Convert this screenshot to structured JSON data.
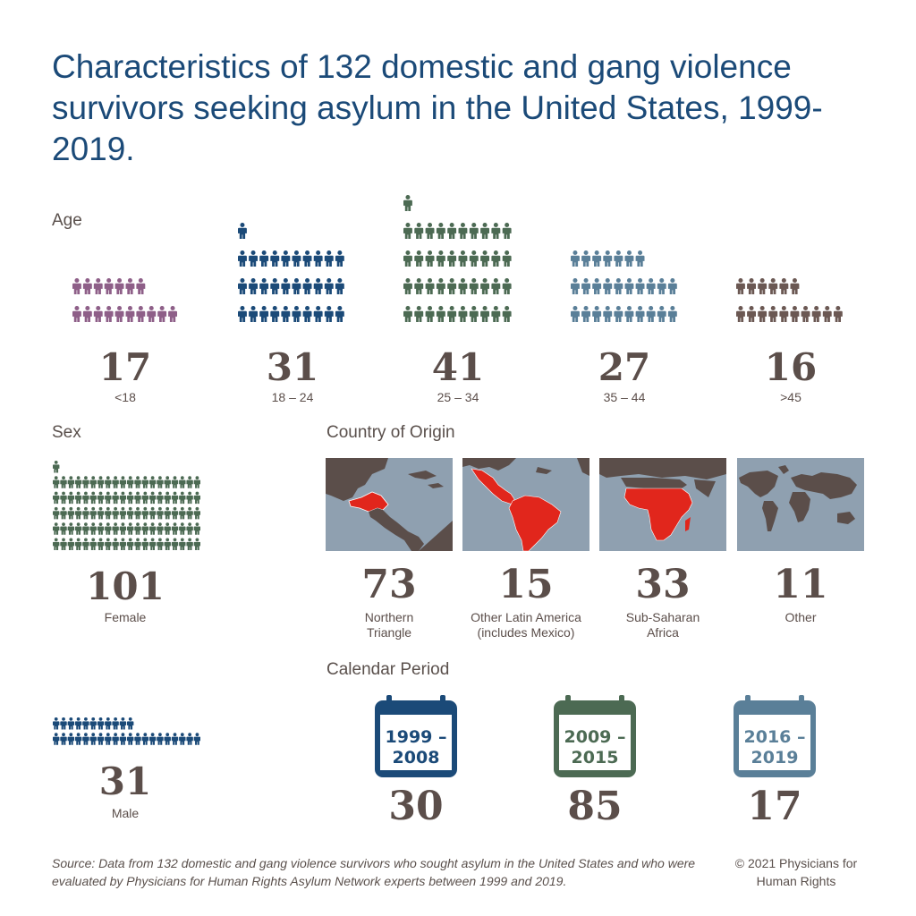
{
  "title": "Characteristics of 132 domestic and gang violence survivors seeking asylum in the United States, 1999-2019.",
  "sections": {
    "age": "Age",
    "sex": "Sex",
    "country": "Country of Origin",
    "period": "Calendar Period"
  },
  "colors": {
    "title": "#1b4a78",
    "text": "#5b4e4a",
    "purple": "#8e5f88",
    "navy": "#1b4a78",
    "green": "#4c6a53",
    "steel": "#5a7f98",
    "brown": "#6b5853",
    "map_sea": "#8fa0b0",
    "map_land": "#5b4e4a",
    "map_highlight": "#e1261c"
  },
  "chart_data": [
    {
      "type": "pictograph",
      "title": "Age",
      "categories": [
        "<18",
        "18 – 24",
        "25 – 34",
        "35 – 44",
        ">45"
      ],
      "values": [
        17,
        31,
        41,
        27,
        16
      ],
      "labels": [
        "17",
        "31",
        "41",
        "27",
        "16"
      ],
      "colors": [
        "#8e5f88",
        "#1b4a78",
        "#4c6a53",
        "#5a7f98",
        "#6b5853"
      ]
    },
    {
      "type": "pictograph",
      "title": "Sex",
      "categories": [
        "Female",
        "Male"
      ],
      "values": [
        101,
        31
      ],
      "labels": [
        "101",
        "31"
      ],
      "colors": [
        "#4c6a53",
        "#1b4a78"
      ]
    },
    {
      "type": "map-icons",
      "title": "Country of Origin",
      "categories": [
        "Northern Triangle",
        "Other Latin America (includes Mexico)",
        "Sub-Saharan Africa",
        "Other"
      ],
      "values": [
        73,
        15,
        33,
        11
      ],
      "labels": [
        "73",
        "15",
        "33",
        "11"
      ]
    },
    {
      "type": "calendar-icons",
      "title": "Calendar Period",
      "categories": [
        "1999 – 2008",
        "2009 – 2015",
        "2016 – 2019"
      ],
      "icon_lines": [
        [
          "1999 –",
          "2008"
        ],
        [
          "2009 –",
          "2015"
        ],
        [
          "2016 –",
          "2019"
        ]
      ],
      "values": [
        30,
        85,
        17
      ],
      "labels": [
        "30",
        "85",
        "17"
      ],
      "colors": [
        "#1b4a78",
        "#4c6a53",
        "#5a7f98"
      ]
    }
  ],
  "captions": {
    "northern_triangle": [
      "Northern",
      "Triangle"
    ],
    "other_latin": [
      "Other Latin America",
      "(includes Mexico)"
    ],
    "sub_saharan": [
      "Sub-Saharan",
      "Africa"
    ],
    "other": [
      "Other"
    ]
  },
  "footer": {
    "source": "Source: Data from 132 domestic and gang violence survivors who sought asylum in the United States and who were evaluated by Physicians for Human Rights Asylum Network experts between 1999 and 2019.",
    "copyright_line1": "© 2021 Physicians for",
    "copyright_line2": "Human Rights"
  }
}
